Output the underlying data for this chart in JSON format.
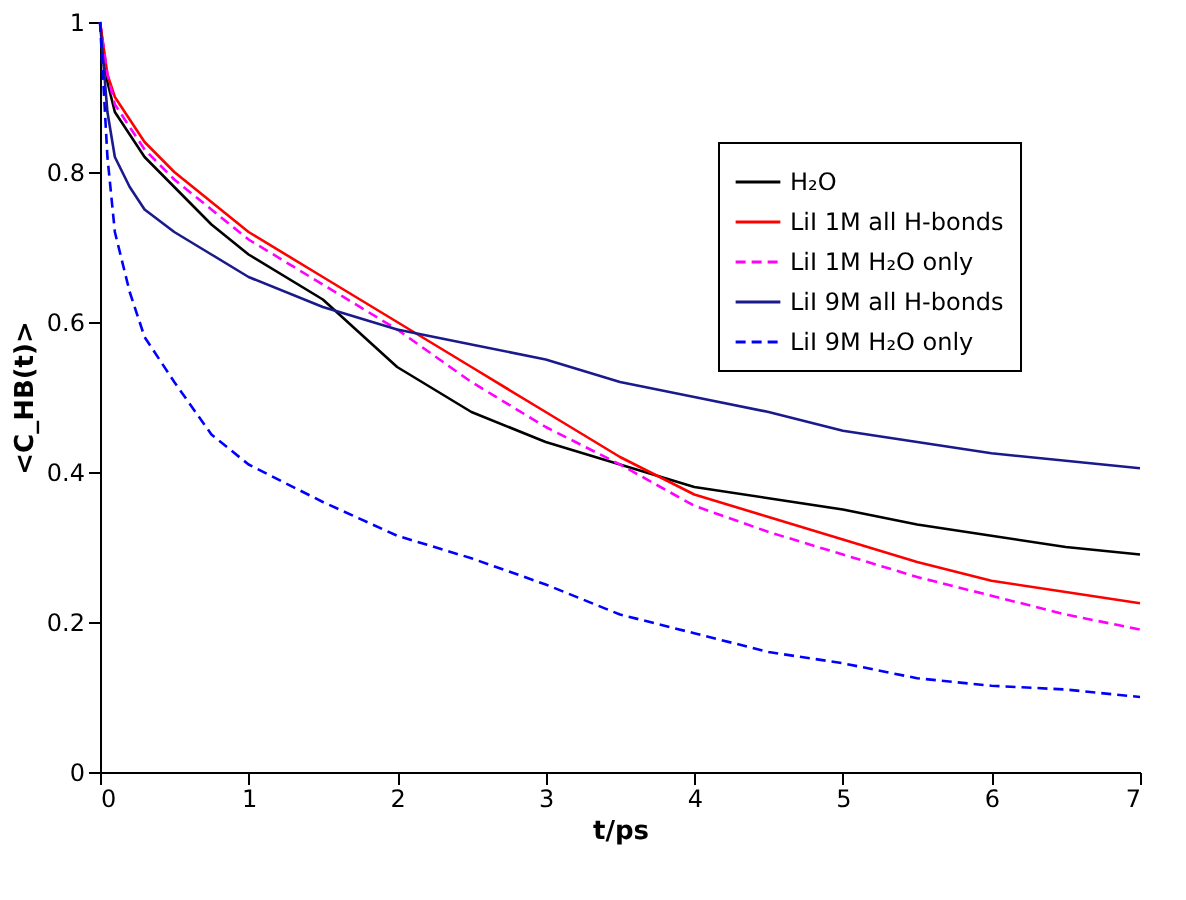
{
  "chart_data": {
    "type": "line",
    "xlabel": "t/ps",
    "ylabel": "<C_HB(t)>",
    "x": [
      0,
      0.05,
      0.1,
      0.2,
      0.3,
      0.5,
      0.75,
      1,
      1.5,
      2,
      2.5,
      3,
      3.5,
      4,
      4.5,
      5,
      5.5,
      6,
      6.5,
      7
    ],
    "series": [
      {
        "name": "H₂O",
        "color": "#000000",
        "line_style": "solid",
        "values": [
          1,
          0.92,
          0.88,
          0.85,
          0.82,
          0.78,
          0.73,
          0.69,
          0.63,
          0.54,
          0.48,
          0.44,
          0.41,
          0.38,
          0.365,
          0.35,
          0.33,
          0.315,
          0.3,
          0.29
        ]
      },
      {
        "name": " LiI 1M all H-bonds",
        "color": "#ff0000",
        "line_style": "solid",
        "values": [
          1,
          0.93,
          0.9,
          0.87,
          0.84,
          0.8,
          0.76,
          0.72,
          0.66,
          0.6,
          0.54,
          0.48,
          0.42,
          0.37,
          0.34,
          0.31,
          0.28,
          0.255,
          0.24,
          0.225
        ]
      },
      {
        "name": "LiI 1M H₂O only",
        "color": "#ff00ff",
        "line_style": "dashed",
        "values": [
          1,
          0.93,
          0.89,
          0.86,
          0.83,
          0.79,
          0.75,
          0.71,
          0.65,
          0.59,
          0.52,
          0.46,
          0.41,
          0.355,
          0.32,
          0.29,
          0.26,
          0.235,
          0.21,
          0.19
        ]
      },
      {
        "name": " LiI 9M all H-bonds",
        "color": "#1a1a8c",
        "line_style": "solid",
        "values": [
          1,
          0.88,
          0.82,
          0.78,
          0.75,
          0.72,
          0.69,
          0.66,
          0.62,
          0.59,
          0.57,
          0.55,
          0.52,
          0.5,
          0.48,
          0.455,
          0.44,
          0.425,
          0.415,
          0.405
        ]
      },
      {
        "name": "LiI 9M H₂O only",
        "color": "#0000ff",
        "line_style": "dashed",
        "values": [
          1,
          0.82,
          0.72,
          0.64,
          0.58,
          0.52,
          0.45,
          0.41,
          0.36,
          0.315,
          0.285,
          0.25,
          0.21,
          0.185,
          0.16,
          0.145,
          0.125,
          0.115,
          0.11,
          0.1
        ]
      }
    ],
    "xlim": [
      0,
      7
    ],
    "ylim": [
      0,
      1
    ],
    "xticks": [
      0,
      1,
      2,
      3,
      4,
      5,
      6,
      7
    ],
    "yticks": [
      0,
      0.2,
      0.4,
      0.6,
      0.8,
      1
    ],
    "grid": false,
    "legend": "top right",
    "marker": "none"
  }
}
